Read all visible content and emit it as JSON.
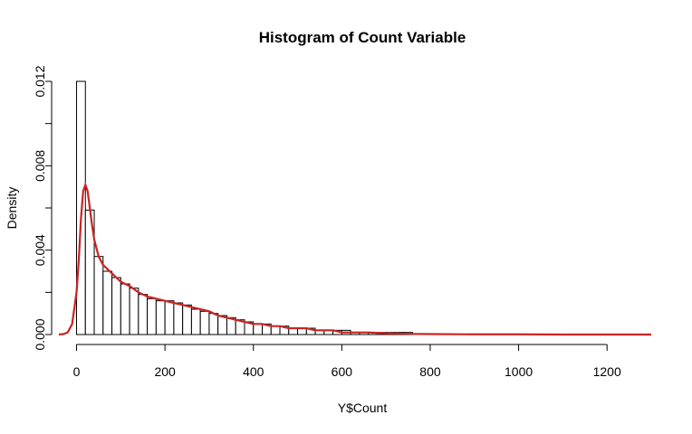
{
  "chart_data": {
    "type": "bar",
    "title": "Histogram of Count Variable",
    "xlabel": "Y$Count",
    "ylabel": "Density",
    "xlim": [
      -40,
      1300
    ],
    "ylim": [
      0,
      0.012
    ],
    "x_ticks": [
      0,
      200,
      400,
      600,
      800,
      1000,
      1200
    ],
    "x_tick_labels": [
      "0",
      "200",
      "400",
      "600",
      "800",
      "1000",
      "1200"
    ],
    "y_ticks": [
      0,
      0.002,
      0.004,
      0.006,
      0.008,
      0.01,
      0.012
    ],
    "y_tick_labels": [
      "0.000",
      "",
      "0.004",
      "",
      "0.008",
      "",
      "0.012"
    ],
    "bin_width": 20,
    "bin_starts": [
      0,
      20,
      40,
      60,
      80,
      100,
      120,
      140,
      160,
      180,
      200,
      220,
      240,
      260,
      280,
      300,
      320,
      340,
      360,
      380,
      400,
      420,
      440,
      460,
      480,
      500,
      520,
      540,
      560,
      580,
      600,
      620,
      640,
      660,
      680,
      700,
      720,
      740
    ],
    "densities": [
      0.012,
      0.0059,
      0.0037,
      0.003,
      0.0027,
      0.0024,
      0.0022,
      0.0019,
      0.0017,
      0.0016,
      0.0016,
      0.0015,
      0.0014,
      0.0012,
      0.0011,
      0.001,
      0.0009,
      0.0008,
      0.0007,
      0.0006,
      0.0005,
      0.0005,
      0.0004,
      0.0004,
      0.0003,
      0.0003,
      0.0003,
      0.0002,
      0.0002,
      0.0002,
      0.0002,
      0.0001,
      0.0001,
      0.0001,
      0.0001,
      0.0001,
      0.0001,
      0.0001
    ],
    "density_curve": {
      "color": "#CC2222",
      "x": [
        -40,
        -30,
        -20,
        -10,
        0,
        5,
        10,
        15,
        20,
        25,
        30,
        35,
        40,
        50,
        60,
        70,
        80,
        90,
        100,
        120,
        140,
        160,
        180,
        200,
        220,
        240,
        260,
        280,
        300,
        320,
        340,
        360,
        380,
        400,
        420,
        440,
        460,
        480,
        500,
        520,
        540,
        560,
        580,
        600,
        620,
        640,
        660,
        680,
        700,
        720,
        740,
        760,
        800,
        900,
        1000,
        1100,
        1200,
        1300
      ],
      "y": [
        0,
        2e-05,
        0.0001,
        0.0005,
        0.002,
        0.0035,
        0.0055,
        0.0068,
        0.0071,
        0.0068,
        0.006,
        0.0052,
        0.0045,
        0.0037,
        0.0033,
        0.0031,
        0.0029,
        0.0027,
        0.0025,
        0.0023,
        0.002,
        0.0018,
        0.0017,
        0.0016,
        0.0015,
        0.0014,
        0.0013,
        0.0012,
        0.0011,
        0.0009,
        0.0008,
        0.0007,
        0.0006,
        0.0005,
        0.0005,
        0.0004,
        0.0004,
        0.0003,
        0.0003,
        0.0003,
        0.0002,
        0.0002,
        0.0002,
        0.0001,
        0.0001,
        0.0001,
        0.0001,
        8e-05,
        6e-05,
        5e-05,
        4e-05,
        3e-05,
        2e-05,
        1e-05,
        1e-05,
        0,
        0,
        0
      ]
    }
  }
}
